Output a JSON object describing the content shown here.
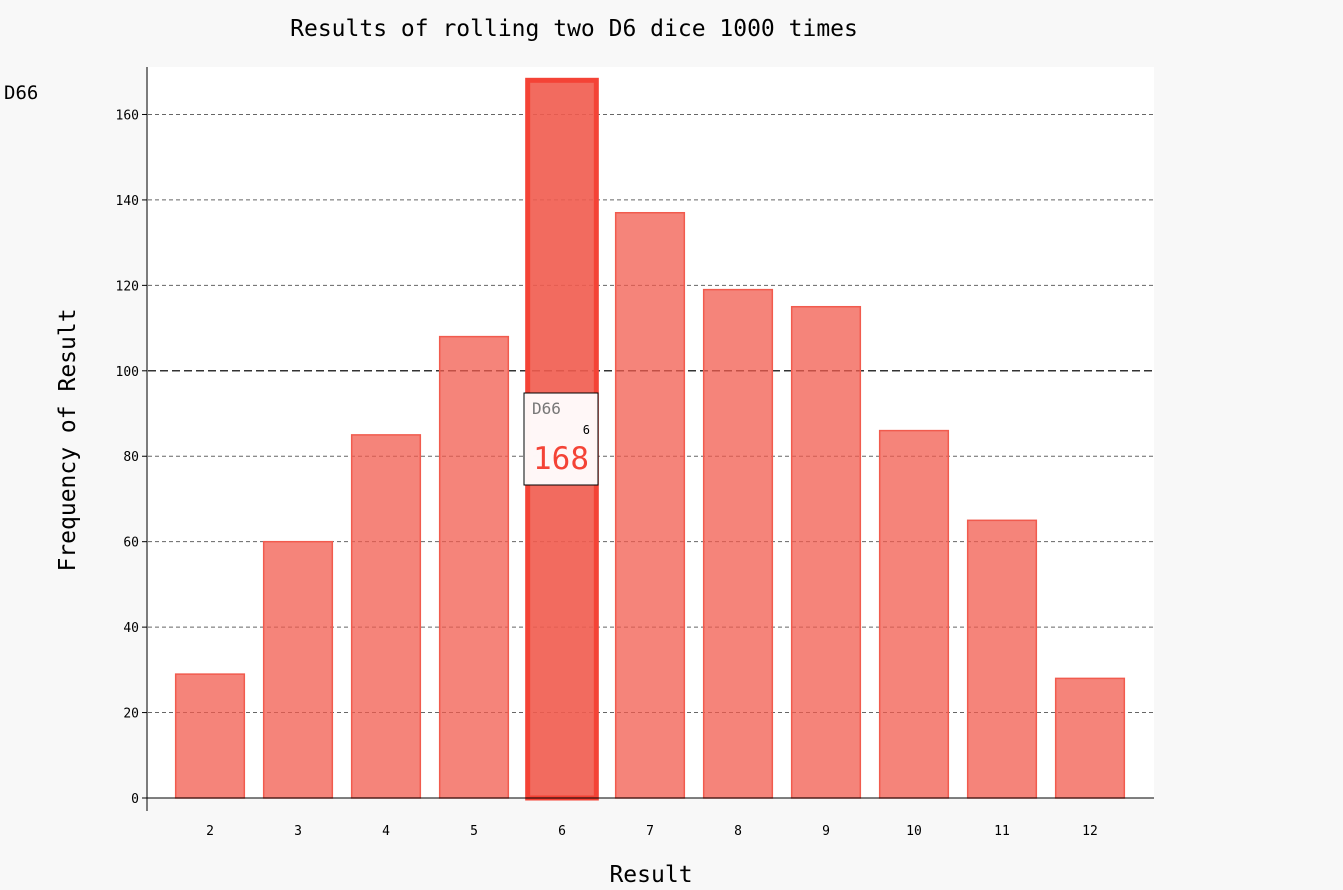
{
  "chart_data": {
    "type": "bar",
    "title": "Results of rolling two D6 dice 1000 times",
    "xlabel": "Result",
    "ylabel": "Frequency of Result",
    "categories": [
      "2",
      "3",
      "4",
      "5",
      "6",
      "7",
      "8",
      "9",
      "10",
      "11",
      "12"
    ],
    "series": [
      {
        "name": "D66",
        "values": [
          29,
          60,
          85,
          108,
          168,
          137,
          119,
          115,
          86,
          65,
          28
        ]
      }
    ],
    "ylim": [
      0,
      170
    ],
    "yticks": [
      0,
      20,
      40,
      60,
      80,
      100,
      120,
      140,
      160
    ],
    "major_ytick": 100,
    "grid": true,
    "legend_position": "top-left",
    "bar_color": "#f15b4e",
    "tooltip": {
      "series": "D66",
      "x": "6",
      "value": "168"
    },
    "highlighted_category": "6"
  }
}
